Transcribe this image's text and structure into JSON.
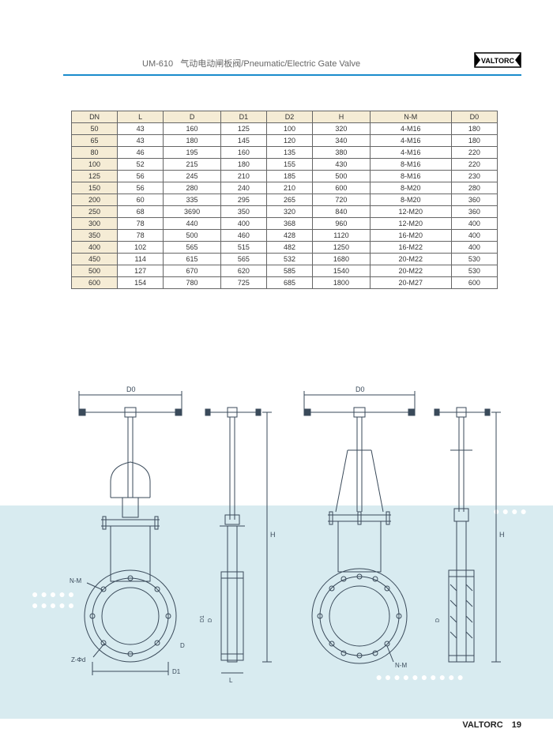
{
  "header": {
    "model": "UM-610",
    "title_cn": "气动电动闸板阀",
    "title_en": "Pneumatic/Electric Gate Valve",
    "brand": "VALTORC",
    "rule_color": "#1a8ccc"
  },
  "table": {
    "header_bg": "#f5ecd5",
    "border_color": "#666666",
    "columns": [
      "DN",
      "L",
      "D",
      "D1",
      "D2",
      "H",
      "N-M",
      "D0"
    ],
    "rows": [
      [
        "50",
        "43",
        "160",
        "125",
        "100",
        "320",
        "4-M16",
        "180"
      ],
      [
        "65",
        "43",
        "180",
        "145",
        "120",
        "340",
        "4-M16",
        "180"
      ],
      [
        "80",
        "46",
        "195",
        "160",
        "135",
        "380",
        "4-M16",
        "220"
      ],
      [
        "100",
        "52",
        "215",
        "180",
        "155",
        "430",
        "8-M16",
        "220"
      ],
      [
        "125",
        "56",
        "245",
        "210",
        "185",
        "500",
        "8-M16",
        "230"
      ],
      [
        "150",
        "56",
        "280",
        "240",
        "210",
        "600",
        "8-M20",
        "280"
      ],
      [
        "200",
        "60",
        "335",
        "295",
        "265",
        "720",
        "8-M20",
        "360"
      ],
      [
        "250",
        "68",
        "3690",
        "350",
        "320",
        "840",
        "12-M20",
        "360"
      ],
      [
        "300",
        "78",
        "440",
        "400",
        "368",
        "960",
        "12-M20",
        "400"
      ],
      [
        "350",
        "78",
        "500",
        "460",
        "428",
        "1120",
        "16-M20",
        "400"
      ],
      [
        "400",
        "102",
        "565",
        "515",
        "482",
        "1250",
        "16-M22",
        "400"
      ],
      [
        "450",
        "114",
        "615",
        "565",
        "532",
        "1680",
        "20-M22",
        "530"
      ],
      [
        "500",
        "127",
        "670",
        "620",
        "585",
        "1540",
        "20-M22",
        "530"
      ],
      [
        "600",
        "154",
        "780",
        "725",
        "685",
        "1800",
        "20-M27",
        "600"
      ]
    ]
  },
  "diagrams": {
    "bg_color": "#d8ebf0",
    "stroke_color": "#3a4a5a",
    "labels": {
      "d0": "D0",
      "h": "H",
      "nm": "N-M",
      "d1": "D1",
      "d": "D",
      "l": "L",
      "zphid": "Z-Φd"
    }
  },
  "footer": {
    "brand": "VALTORC",
    "page": "19"
  }
}
